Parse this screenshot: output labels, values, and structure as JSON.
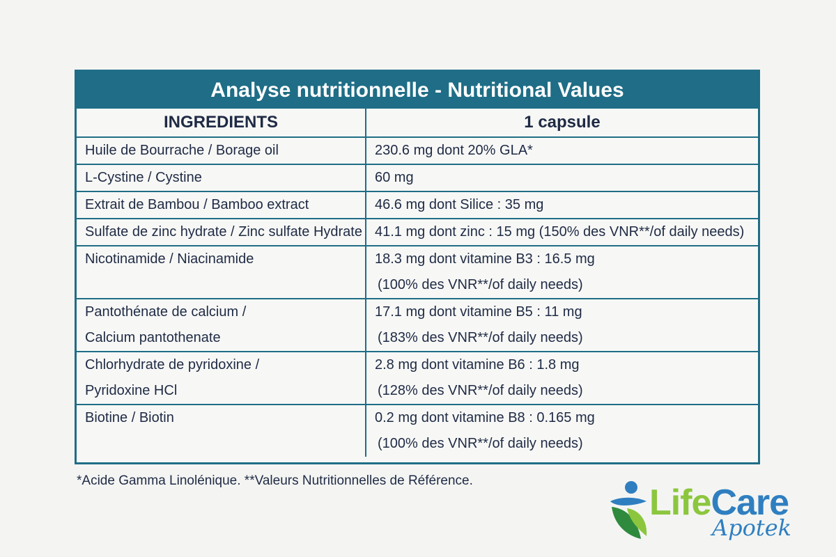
{
  "table": {
    "title": "Analyse nutritionnelle - Nutritional Values",
    "headers": [
      "INGREDIENTS",
      "1 capsule"
    ],
    "rows": [
      {
        "ingredient": [
          "Huile de Bourrache / Borage oil"
        ],
        "amount": [
          "230.6 mg dont 20% GLA*"
        ]
      },
      {
        "ingredient": [
          "L-Cystine / Cystine"
        ],
        "amount": [
          "60 mg"
        ]
      },
      {
        "ingredient": [
          "Extrait de Bambou / Bamboo extract"
        ],
        "amount": [
          "46.6 mg dont Silice : 35 mg"
        ]
      },
      {
        "ingredient": [
          "Sulfate de zinc hydrate / Zinc sulfate Hydrate"
        ],
        "amount": [
          "41.1 mg dont zinc : 15 mg (150% des VNR**/of daily needs)"
        ]
      },
      {
        "ingredient": [
          "Nicotinamide / Niacinamide"
        ],
        "amount": [
          "18.3 mg dont vitamine B3 : 16.5 mg",
          "(100% des VNR**/of daily needs)"
        ]
      },
      {
        "ingredient": [
          "Pantothénate de calcium /",
          "Calcium pantothenate"
        ],
        "amount": [
          "17.1 mg dont vitamine B5 : 11 mg",
          "(183% des VNR**/of daily needs)"
        ]
      },
      {
        "ingredient": [
          "Chlorhydrate de pyridoxine /",
          "Pyridoxine HCl"
        ],
        "amount": [
          "2.8 mg dont vitamine B6 : 1.8 mg",
          "(128% des VNR**/of daily needs)"
        ]
      },
      {
        "ingredient": [
          "Biotine / Biotin"
        ],
        "amount": [
          "0.2 mg dont vitamine B8 : 0.165 mg",
          "(100% des VNR**/of daily needs)"
        ]
      }
    ]
  },
  "footnote": "*Acide Gamma Linolénique. **Valeurs Nutritionnelles de Référence.",
  "logo": {
    "part1": "Life",
    "part2": "Care",
    "sub": "Apotek"
  },
  "colors": {
    "accent": "#1f6d86",
    "logo_green": "#8cc63e",
    "logo_blue": "#2f7fc0"
  }
}
